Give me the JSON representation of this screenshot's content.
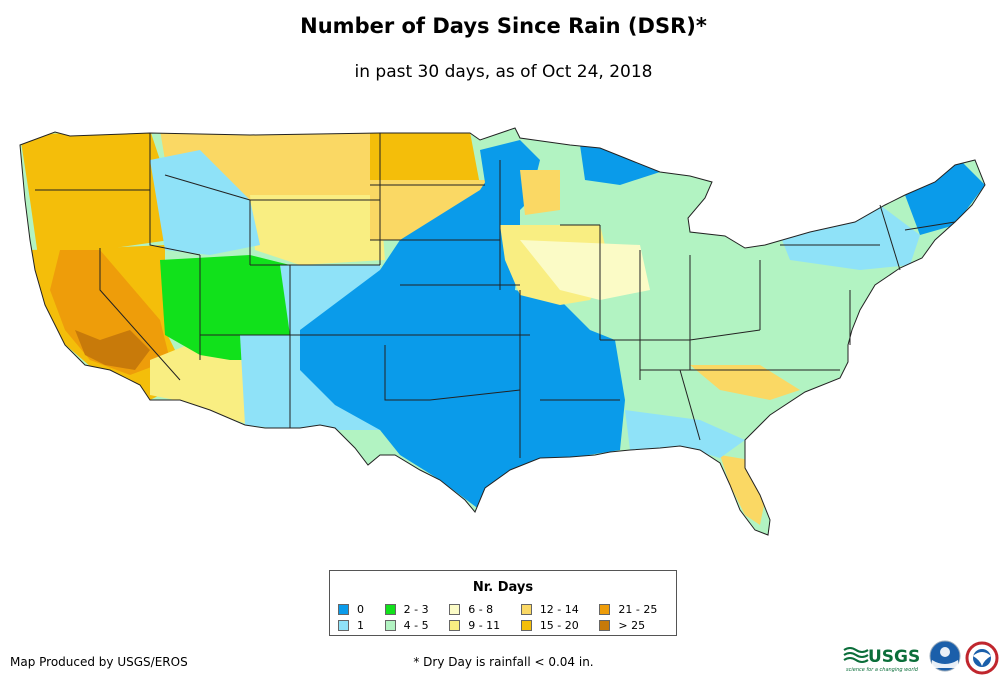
{
  "title": "Number of Days Since Rain (DSR)*",
  "subtitle": "in past 30 days, as of Oct 24, 2018",
  "legend": {
    "title": "Nr. Days",
    "items": [
      {
        "label": "0",
        "color": "#0A9BEA"
      },
      {
        "label": "1",
        "color": "#8FE2F8"
      },
      {
        "label": "2 - 3",
        "color": "#11E11B"
      },
      {
        "label": "4 - 5",
        "color": "#B2F3C2"
      },
      {
        "label": "6 - 8",
        "color": "#FBFBC6"
      },
      {
        "label": "9 - 11",
        "color": "#F9EE82"
      },
      {
        "label": "12 - 14",
        "color": "#FAD864"
      },
      {
        "label": "15 - 20",
        "color": "#F4BE0A"
      },
      {
        "label": "21 - 25",
        "color": "#EE9D0A"
      },
      {
        "label": "> 25",
        "color": "#C87A0A"
      }
    ]
  },
  "footer": {
    "credit": "Map Produced by USGS/EROS",
    "note": "* Dry Day is rainfall < 0.04 in."
  },
  "logos": {
    "usgs": "USGS",
    "usgs_tagline": "science for a changing world"
  }
}
